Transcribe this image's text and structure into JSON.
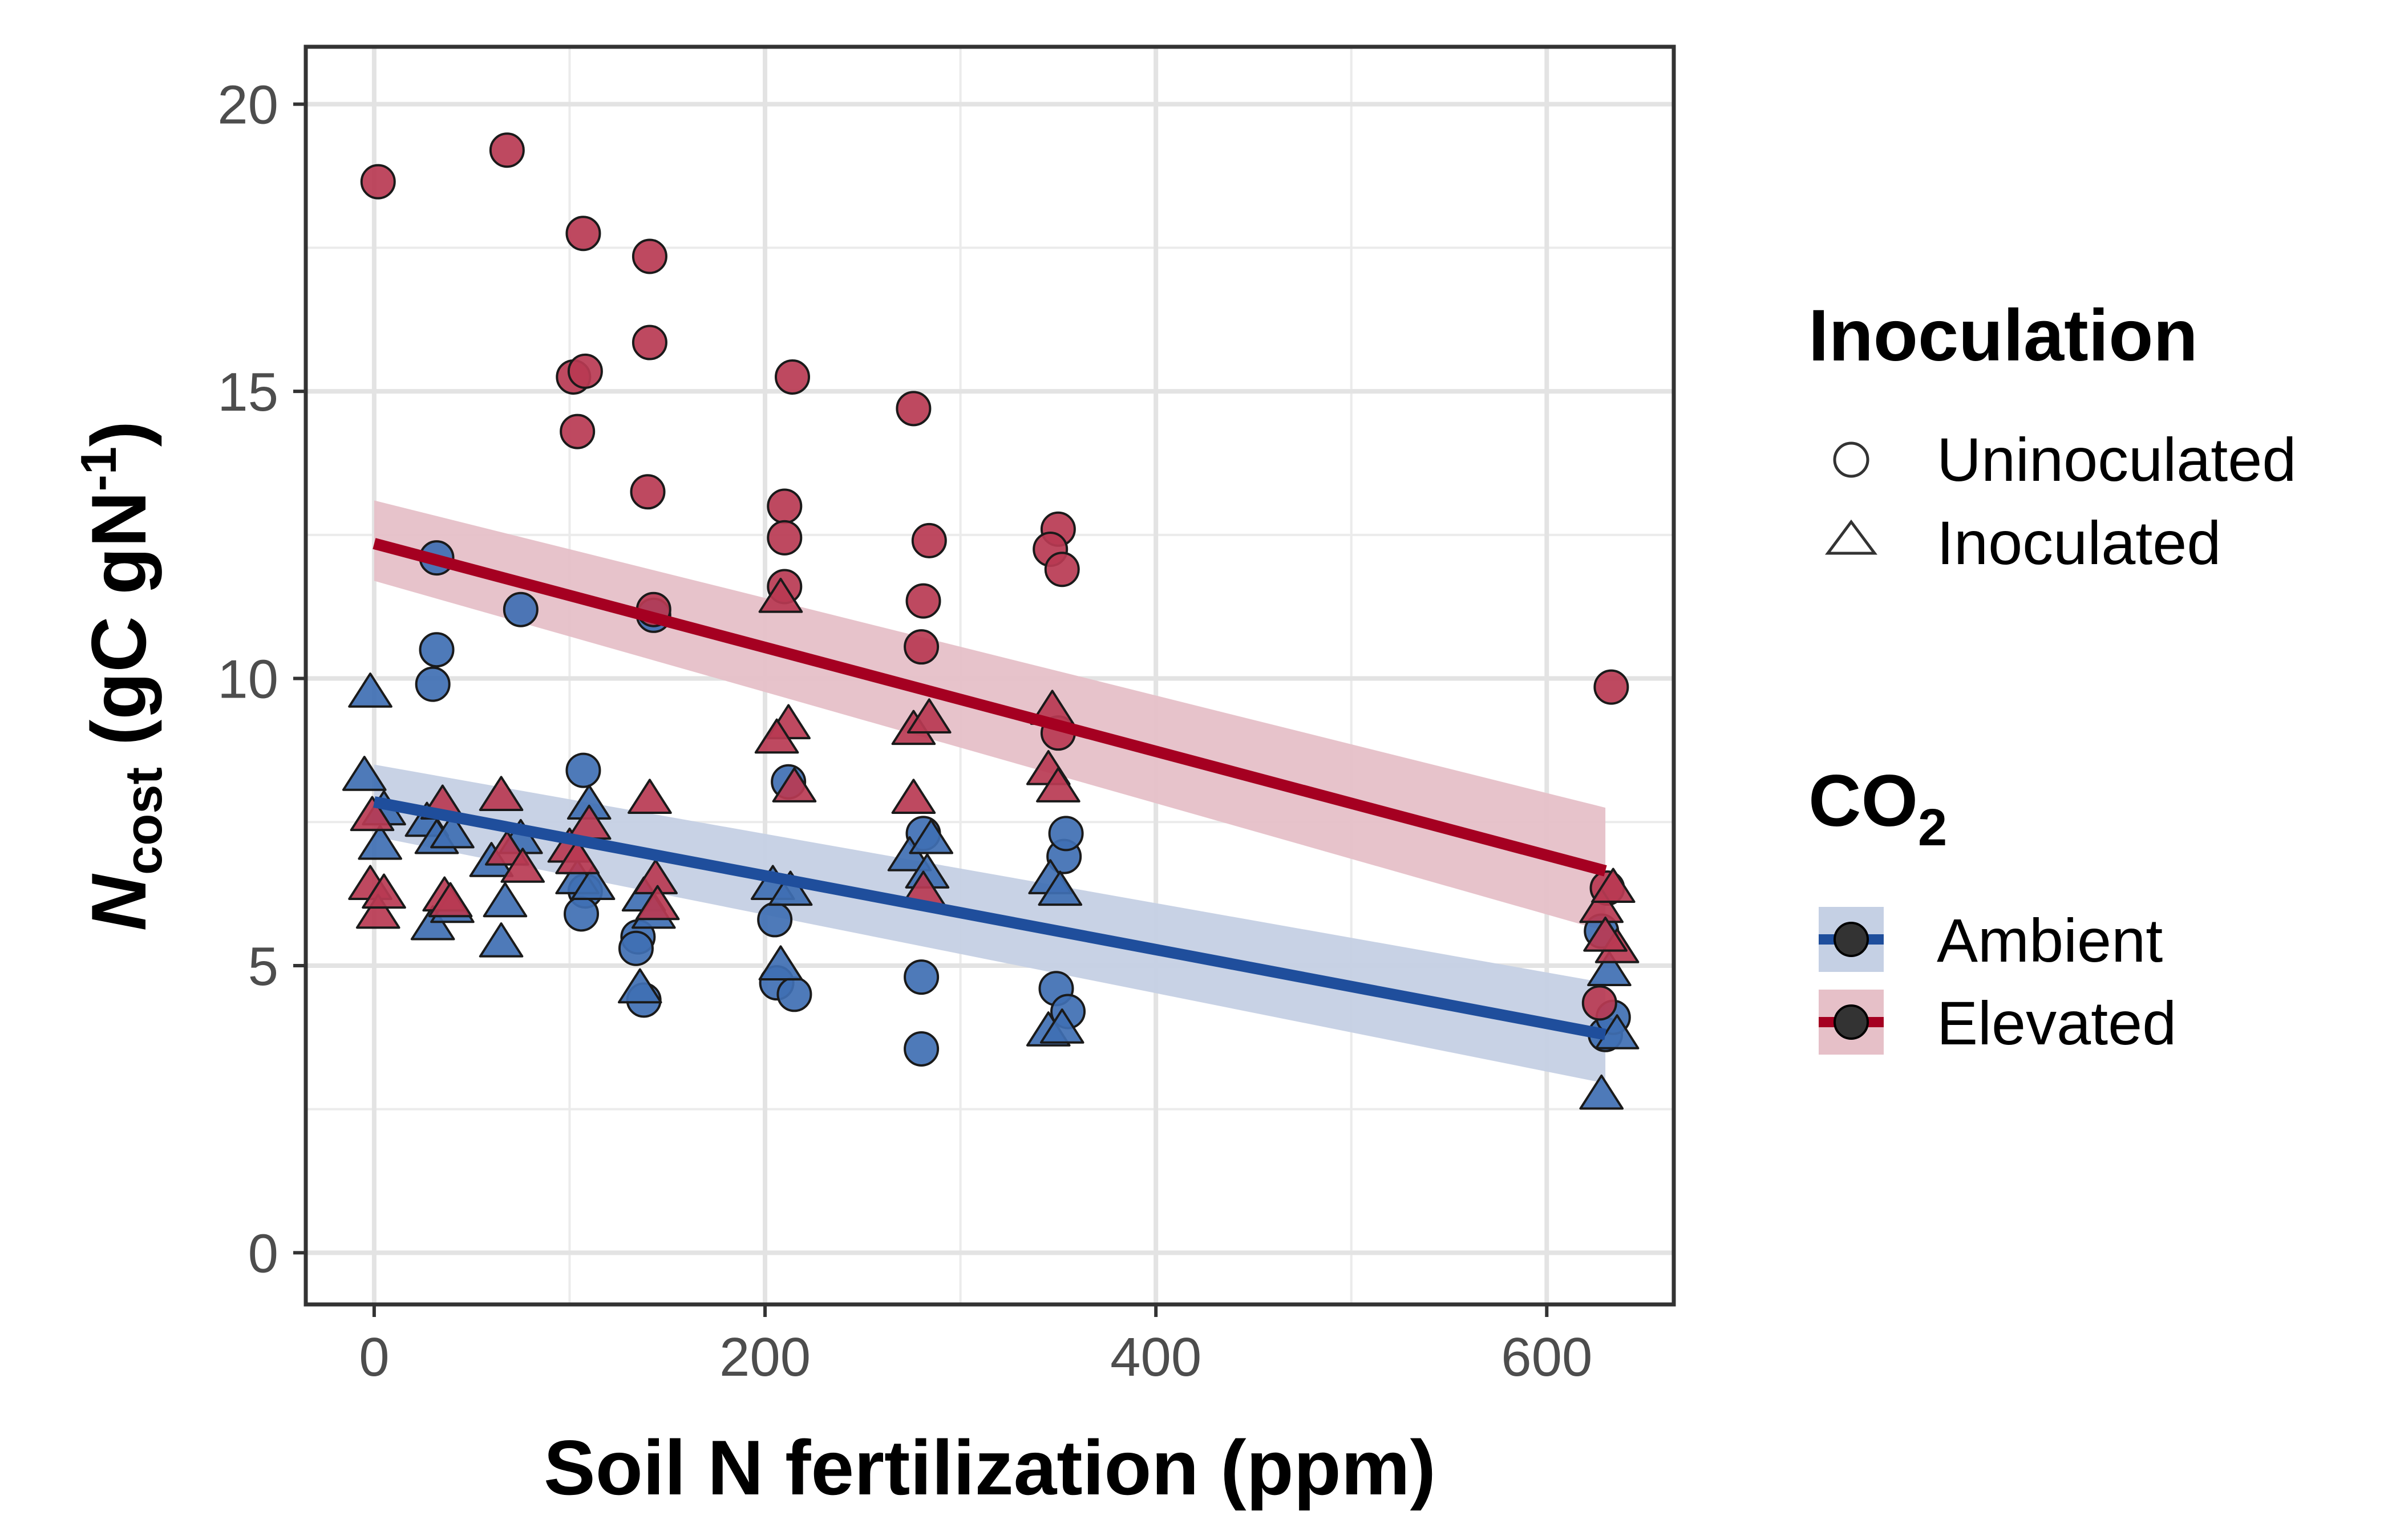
{
  "chart_data": {
    "type": "scatter",
    "xlabel": "Soil N fertilization (ppm)",
    "ylabel": {
      "n": "N",
      "sub": "cost",
      "rest": " (gC gN",
      "sup": "-1",
      "close": ")"
    },
    "xlim": [
      -35,
      665
    ],
    "ylim": [
      -0.9,
      21
    ],
    "x_ticks": [
      0,
      200,
      400,
      600
    ],
    "y_ticks": [
      0,
      5,
      10,
      15,
      20
    ],
    "grid": true,
    "legend_position": "right",
    "legends": {
      "inoculation": {
        "title": "Inoculation",
        "items": [
          {
            "label": "Uninoculated",
            "shape": "circle"
          },
          {
            "label": "Inoculated",
            "shape": "triangle"
          }
        ]
      },
      "co2": {
        "title_main": "CO",
        "title_sub": "2",
        "items": [
          {
            "label": "Ambient",
            "color": "#1f4e9c",
            "fill": "#3f6fb3",
            "band": "#c5d0e4"
          },
          {
            "label": "Elevated",
            "color": "#a50021",
            "fill": "#b83a52",
            "band": "#e6c0c8"
          }
        ]
      }
    },
    "series": [
      {
        "co2": "Ambient",
        "color": "#1f4e9c",
        "fill": "#3f6fb3",
        "band_color": "#c5d0e4",
        "fit": {
          "x": [
            0,
            630
          ],
          "y": [
            7.85,
            3.8
          ],
          "band_upper": [
            8.5,
            4.7
          ],
          "band_lower": [
            7.25,
            2.95
          ]
        },
        "points": [
          {
            "x": 32,
            "y": 12.1,
            "shape": "circle"
          },
          {
            "x": 32,
            "y": 10.5,
            "shape": "circle"
          },
          {
            "x": 30,
            "y": 9.9,
            "shape": "circle"
          },
          {
            "x": 75,
            "y": 11.2,
            "shape": "circle"
          },
          {
            "x": 107,
            "y": 8.4,
            "shape": "circle"
          },
          {
            "x": 108,
            "y": 6.3,
            "shape": "circle"
          },
          {
            "x": 106,
            "y": 5.9,
            "shape": "circle"
          },
          {
            "x": 135,
            "y": 5.5,
            "shape": "circle"
          },
          {
            "x": 134,
            "y": 5.3,
            "shape": "circle"
          },
          {
            "x": 138,
            "y": 4.4,
            "shape": "circle"
          },
          {
            "x": 143,
            "y": 11.1,
            "shape": "circle"
          },
          {
            "x": 212,
            "y": 8.2,
            "shape": "circle"
          },
          {
            "x": 205,
            "y": 5.8,
            "shape": "circle"
          },
          {
            "x": 206,
            "y": 4.7,
            "shape": "circle"
          },
          {
            "x": 215,
            "y": 4.5,
            "shape": "circle"
          },
          {
            "x": 280,
            "y": 4.8,
            "shape": "circle"
          },
          {
            "x": 280,
            "y": 3.55,
            "shape": "circle"
          },
          {
            "x": 281,
            "y": 7.3,
            "shape": "circle"
          },
          {
            "x": 349,
            "y": 4.6,
            "shape": "circle"
          },
          {
            "x": 353,
            "y": 6.9,
            "shape": "circle"
          },
          {
            "x": 354,
            "y": 7.3,
            "shape": "circle"
          },
          {
            "x": 355,
            "y": 4.2,
            "shape": "circle"
          },
          {
            "x": 628,
            "y": 5.6,
            "shape": "circle"
          },
          {
            "x": 630,
            "y": 3.8,
            "shape": "circle"
          },
          {
            "x": 634,
            "y": 4.1,
            "shape": "circle"
          },
          {
            "x": -2,
            "y": 9.75,
            "shape": "triangle"
          },
          {
            "x": -5,
            "y": 8.3,
            "shape": "triangle"
          },
          {
            "x": 5,
            "y": 7.7,
            "shape": "triangle"
          },
          {
            "x": 3,
            "y": 7.1,
            "shape": "triangle"
          },
          {
            "x": 27,
            "y": 7.5,
            "shape": "triangle"
          },
          {
            "x": 32,
            "y": 7.2,
            "shape": "triangle"
          },
          {
            "x": 40,
            "y": 7.3,
            "shape": "triangle"
          },
          {
            "x": 30,
            "y": 5.7,
            "shape": "triangle"
          },
          {
            "x": 40,
            "y": 6.0,
            "shape": "triangle"
          },
          {
            "x": 60,
            "y": 6.8,
            "shape": "triangle"
          },
          {
            "x": 67,
            "y": 6.1,
            "shape": "triangle"
          },
          {
            "x": 65,
            "y": 5.4,
            "shape": "triangle"
          },
          {
            "x": 75,
            "y": 7.2,
            "shape": "triangle"
          },
          {
            "x": 110,
            "y": 7.8,
            "shape": "triangle"
          },
          {
            "x": 104,
            "y": 6.5,
            "shape": "triangle"
          },
          {
            "x": 112,
            "y": 6.4,
            "shape": "triangle"
          },
          {
            "x": 138,
            "y": 6.2,
            "shape": "triangle"
          },
          {
            "x": 136,
            "y": 4.6,
            "shape": "triangle"
          },
          {
            "x": 143,
            "y": 5.9,
            "shape": "triangle"
          },
          {
            "x": 204,
            "y": 6.4,
            "shape": "triangle"
          },
          {
            "x": 213,
            "y": 6.3,
            "shape": "triangle"
          },
          {
            "x": 208,
            "y": 5.0,
            "shape": "triangle"
          },
          {
            "x": 274,
            "y": 6.9,
            "shape": "triangle"
          },
          {
            "x": 283,
            "y": 6.6,
            "shape": "triangle"
          },
          {
            "x": 285,
            "y": 7.2,
            "shape": "triangle"
          },
          {
            "x": 346,
            "y": 6.5,
            "shape": "triangle"
          },
          {
            "x": 351,
            "y": 6.3,
            "shape": "triangle"
          },
          {
            "x": 345,
            "y": 3.85,
            "shape": "triangle"
          },
          {
            "x": 352,
            "y": 3.9,
            "shape": "triangle"
          },
          {
            "x": 628,
            "y": 2.75,
            "shape": "triangle"
          },
          {
            "x": 632,
            "y": 4.9,
            "shape": "triangle"
          },
          {
            "x": 636,
            "y": 3.8,
            "shape": "triangle"
          }
        ]
      },
      {
        "co2": "Elevated",
        "color": "#a50021",
        "fill": "#b83a52",
        "band_color": "#e6c0c8",
        "fit": {
          "x": [
            0,
            630
          ],
          "y": [
            12.35,
            6.65
          ],
          "band_upper": [
            13.1,
            7.75
          ],
          "band_lower": [
            11.7,
            5.6
          ]
        },
        "points": [
          {
            "x": 2,
            "y": 18.65,
            "shape": "circle"
          },
          {
            "x": 68,
            "y": 19.2,
            "shape": "circle"
          },
          {
            "x": 107,
            "y": 17.75,
            "shape": "circle"
          },
          {
            "x": 141,
            "y": 17.35,
            "shape": "circle"
          },
          {
            "x": 141,
            "y": 15.85,
            "shape": "circle"
          },
          {
            "x": 102,
            "y": 15.25,
            "shape": "circle"
          },
          {
            "x": 108,
            "y": 15.35,
            "shape": "circle"
          },
          {
            "x": 104,
            "y": 14.3,
            "shape": "circle"
          },
          {
            "x": 140,
            "y": 13.25,
            "shape": "circle"
          },
          {
            "x": 143,
            "y": 11.2,
            "shape": "circle"
          },
          {
            "x": 214,
            "y": 15.25,
            "shape": "circle"
          },
          {
            "x": 210,
            "y": 13.0,
            "shape": "circle"
          },
          {
            "x": 210,
            "y": 12.45,
            "shape": "circle"
          },
          {
            "x": 210,
            "y": 11.6,
            "shape": "circle"
          },
          {
            "x": 276,
            "y": 14.7,
            "shape": "circle"
          },
          {
            "x": 284,
            "y": 12.4,
            "shape": "circle"
          },
          {
            "x": 281,
            "y": 11.35,
            "shape": "circle"
          },
          {
            "x": 280,
            "y": 10.55,
            "shape": "circle"
          },
          {
            "x": 350,
            "y": 12.6,
            "shape": "circle"
          },
          {
            "x": 346,
            "y": 12.25,
            "shape": "circle"
          },
          {
            "x": 352,
            "y": 11.9,
            "shape": "circle"
          },
          {
            "x": 350,
            "y": 9.05,
            "shape": "circle"
          },
          {
            "x": 633,
            "y": 9.85,
            "shape": "circle"
          },
          {
            "x": 631,
            "y": 6.35,
            "shape": "circle"
          },
          {
            "x": 627,
            "y": 4.35,
            "shape": "circle"
          },
          {
            "x": -2,
            "y": 6.4,
            "shape": "triangle"
          },
          {
            "x": 2,
            "y": 5.9,
            "shape": "triangle"
          },
          {
            "x": 5,
            "y": 6.25,
            "shape": "triangle"
          },
          {
            "x": -1,
            "y": 7.6,
            "shape": "triangle"
          },
          {
            "x": 35,
            "y": 7.8,
            "shape": "triangle"
          },
          {
            "x": 36,
            "y": 6.2,
            "shape": "triangle"
          },
          {
            "x": 39,
            "y": 6.1,
            "shape": "triangle"
          },
          {
            "x": 65,
            "y": 7.95,
            "shape": "triangle"
          },
          {
            "x": 68,
            "y": 7.0,
            "shape": "triangle"
          },
          {
            "x": 76,
            "y": 6.7,
            "shape": "triangle"
          },
          {
            "x": 100,
            "y": 7.05,
            "shape": "triangle"
          },
          {
            "x": 104,
            "y": 6.85,
            "shape": "triangle"
          },
          {
            "x": 110,
            "y": 7.45,
            "shape": "triangle"
          },
          {
            "x": 141,
            "y": 7.9,
            "shape": "triangle"
          },
          {
            "x": 144,
            "y": 6.5,
            "shape": "triangle"
          },
          {
            "x": 145,
            "y": 6.05,
            "shape": "triangle"
          },
          {
            "x": 208,
            "y": 11.4,
            "shape": "triangle"
          },
          {
            "x": 212,
            "y": 9.2,
            "shape": "triangle"
          },
          {
            "x": 206,
            "y": 8.95,
            "shape": "triangle"
          },
          {
            "x": 215,
            "y": 8.1,
            "shape": "triangle"
          },
          {
            "x": 276,
            "y": 9.1,
            "shape": "triangle"
          },
          {
            "x": 284,
            "y": 9.3,
            "shape": "triangle"
          },
          {
            "x": 276,
            "y": 7.9,
            "shape": "triangle"
          },
          {
            "x": 281,
            "y": 6.3,
            "shape": "triangle"
          },
          {
            "x": 347,
            "y": 9.45,
            "shape": "triangle"
          },
          {
            "x": 345,
            "y": 8.4,
            "shape": "triangle"
          },
          {
            "x": 350,
            "y": 8.1,
            "shape": "triangle"
          },
          {
            "x": 628,
            "y": 6.0,
            "shape": "triangle"
          },
          {
            "x": 634,
            "y": 6.35,
            "shape": "triangle"
          },
          {
            "x": 636,
            "y": 5.3,
            "shape": "triangle"
          },
          {
            "x": 630,
            "y": 5.5,
            "shape": "triangle"
          }
        ]
      }
    ]
  }
}
